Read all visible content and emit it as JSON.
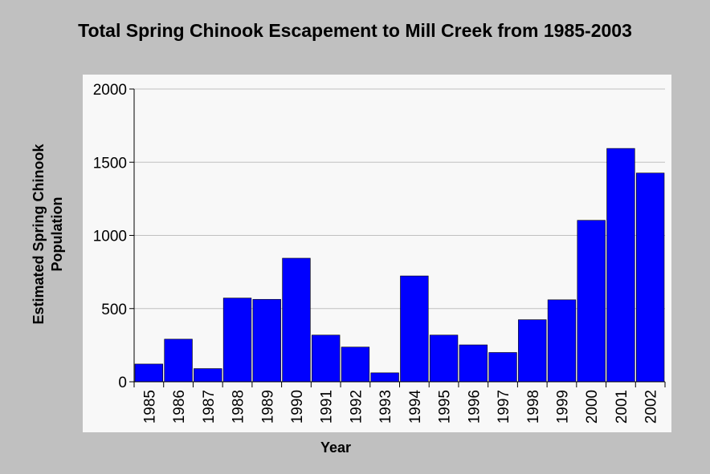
{
  "chart_data": {
    "type": "bar",
    "title": "Total Spring Chinook Escapement to Mill Creek from 1985-2003",
    "xlabel": "Year",
    "ylabel": "Estimated Spring Chinook Population",
    "categories": [
      "1985",
      "1986",
      "1987",
      "1988",
      "1989",
      "1990",
      "1991",
      "1992",
      "1993",
      "1994",
      "1995",
      "1996",
      "1997",
      "1998",
      "1999",
      "2000",
      "2001",
      "2002"
    ],
    "values": [
      121,
      291,
      90,
      572,
      563,
      844,
      319,
      237,
      61,
      723,
      319,
      252,
      200,
      424,
      560,
      1103,
      1594,
      1426
    ],
    "ylim": [
      0,
      2000
    ],
    "yticks": [
      0,
      500,
      1000,
      1500,
      2000
    ],
    "grid": true,
    "colors": {
      "bar": "#0000ff",
      "plot_background": "#f8f8f8",
      "page_background": "#c0c0c0",
      "grid": "#c0c0c0"
    }
  }
}
